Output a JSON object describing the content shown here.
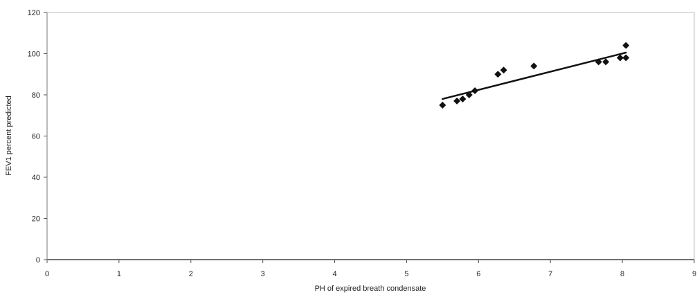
{
  "chart_data": {
    "type": "scatter",
    "title": "",
    "xlabel": "PH of expired breath condensate",
    "ylabel": "FEV1 percent predicted",
    "xlim": [
      0,
      9
    ],
    "ylim": [
      0,
      120
    ],
    "x_ticks": [
      "0",
      "1",
      "2",
      "3",
      "4",
      "5",
      "6",
      "7",
      "8",
      "9"
    ],
    "y_ticks": [
      "0",
      "20",
      "40",
      "60",
      "80",
      "100",
      "120"
    ],
    "grid": false,
    "legend": "none",
    "marker_color": "#111111",
    "trendline": {
      "type": "linear",
      "x": [
        5.5,
        8.05
      ],
      "y": [
        78,
        100.5
      ]
    },
    "series": [
      {
        "x": [
          5.5,
          5.7,
          5.78,
          5.87,
          5.95,
          6.27,
          6.35,
          6.77,
          7.67,
          7.77,
          7.97,
          8.05,
          8.05
        ],
        "y": [
          75,
          77,
          78,
          80,
          82,
          90,
          92,
          94,
          96,
          96,
          98,
          98,
          104
        ]
      }
    ]
  }
}
